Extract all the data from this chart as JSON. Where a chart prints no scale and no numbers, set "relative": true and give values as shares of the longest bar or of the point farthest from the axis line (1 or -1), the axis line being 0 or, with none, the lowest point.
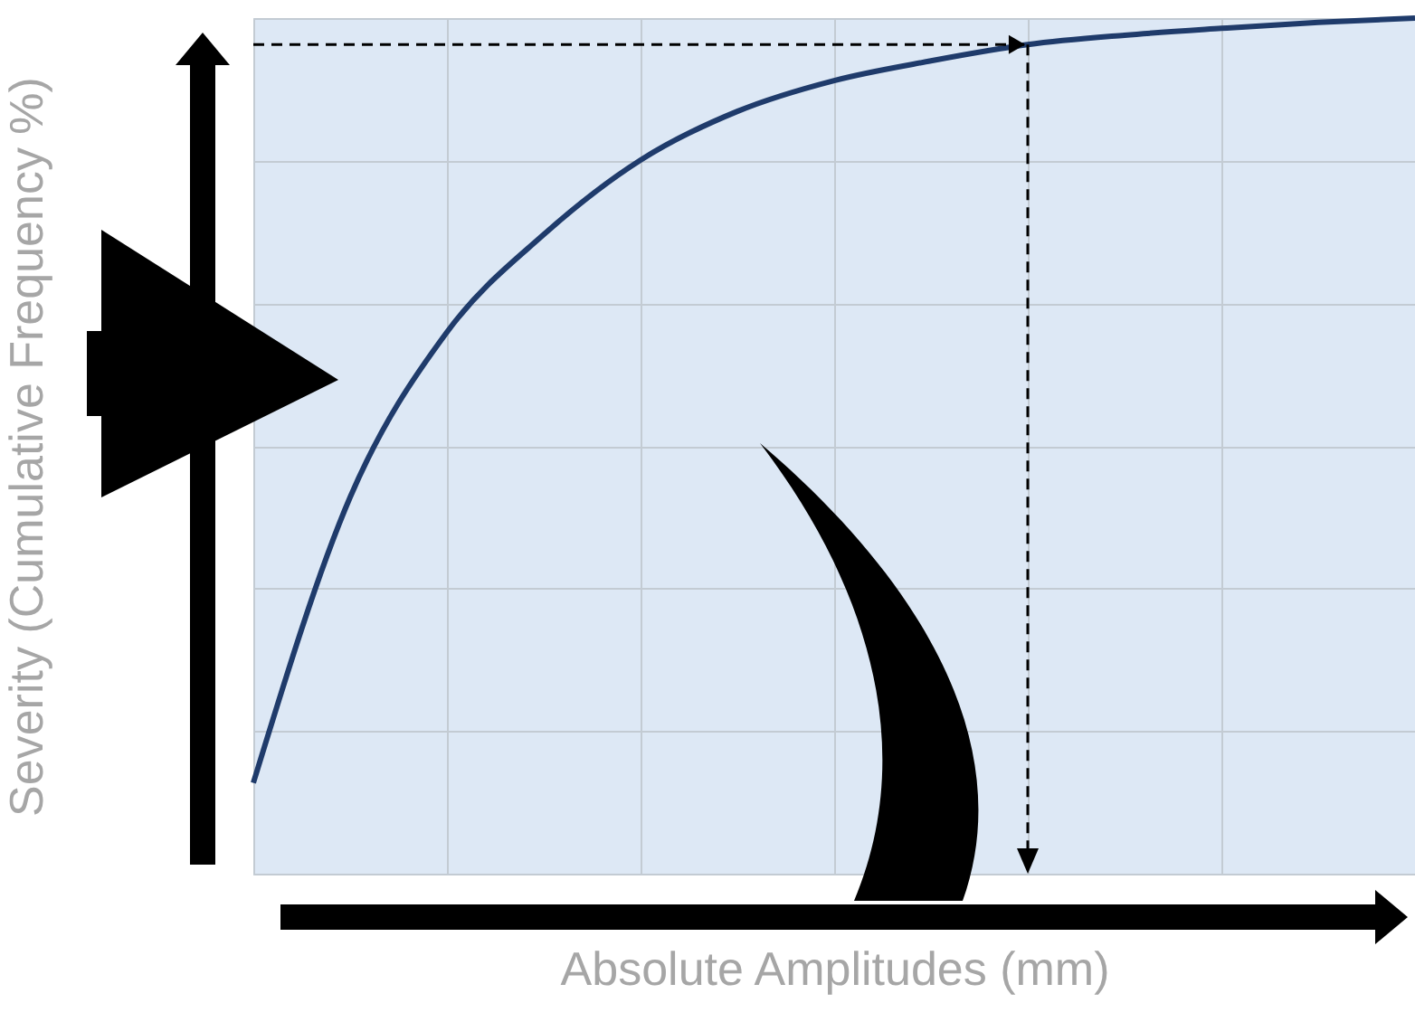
{
  "chart_data": {
    "type": "line",
    "relative": true,
    "xlabel": "Absolute Amplitudes (mm)",
    "ylabel": "Severity (Cumulative Frequency %)",
    "categories": [
      null,
      null,
      null,
      null,
      null,
      null,
      null,
      null,
      null,
      null,
      null,
      null,
      null
    ],
    "series": [
      {
        "color": "#1f3b6b",
        "values": [
          0.106,
          0.44,
          0.633,
          0.747,
          0.834,
          0.891,
          0.927,
          0.95,
          0.969,
          0.98,
          0.988,
          0.995,
          1
        ]
      }
    ],
    "ref_lines": [
      {
        "axis": "y",
        "value": 0.969,
        "color": "#000000",
        "line_style": "dashed"
      }
    ],
    "grid": true,
    "tick_labels": false
  }
}
